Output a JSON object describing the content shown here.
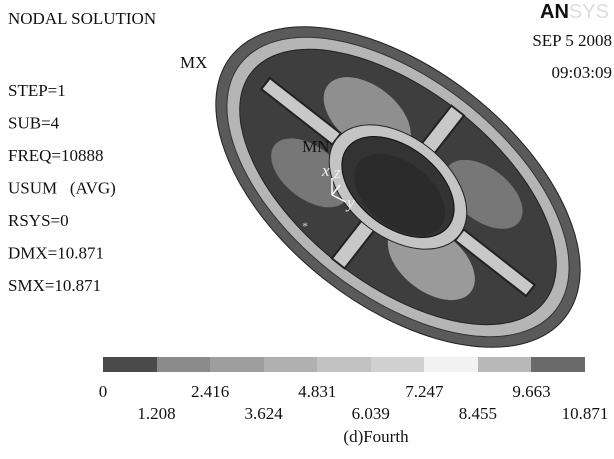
{
  "header": {
    "title": "NODAL SOLUTION",
    "logo_bold": "AN",
    "logo_faint": "SYS",
    "date": "SEP 5 2008",
    "time": "09:03:09"
  },
  "info": [
    "STEP=1",
    "SUB=4",
    "FREQ=10888",
    "USUM   (AVG)",
    "RSYS=0",
    "DMX=10.871",
    "SMX=10.871"
  ],
  "model": {
    "max_label": "MX",
    "min_label": "MN",
    "axis_x": "x",
    "axis_z": "z",
    "axis_y": "y"
  },
  "legend": {
    "values": [
      0,
      1.208,
      2.416,
      3.624,
      4.831,
      6.039,
      7.247,
      8.455,
      9.663,
      10.871
    ]
  },
  "caption": "(d)Fourth"
}
